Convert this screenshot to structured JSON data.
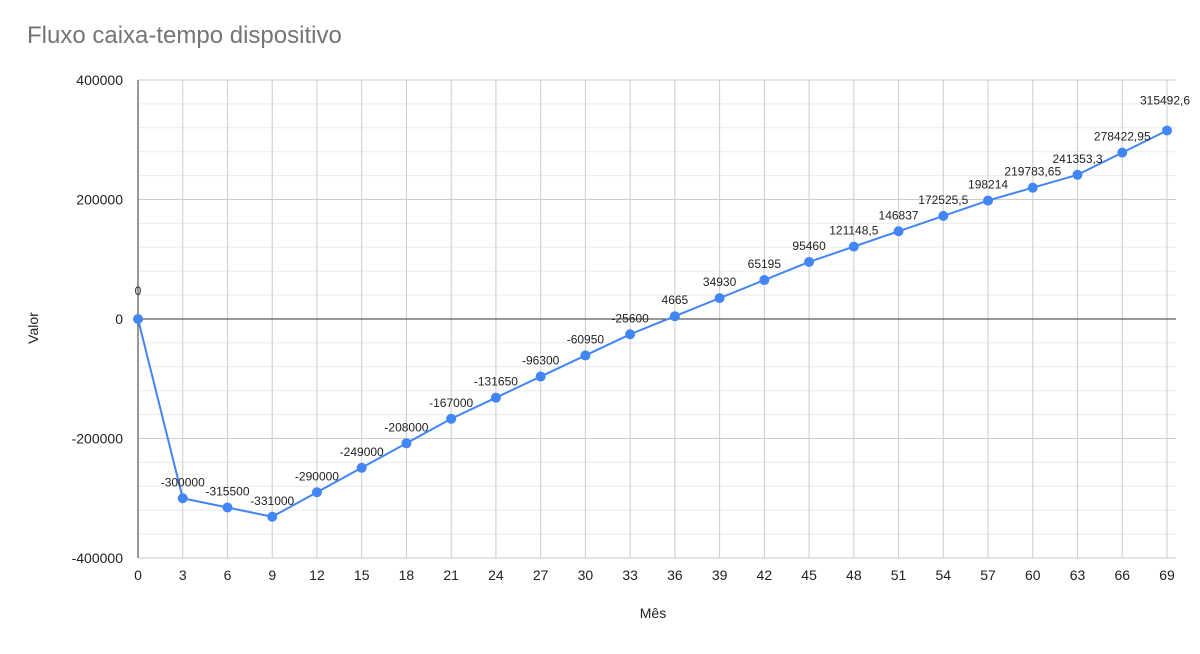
{
  "chart_data": {
    "type": "line",
    "title": "Fluxo caixa-tempo dispositivo",
    "xlabel": "Mês",
    "ylabel": "Valor",
    "x": [
      0,
      3,
      6,
      9,
      12,
      15,
      18,
      21,
      24,
      27,
      30,
      33,
      36,
      39,
      42,
      45,
      48,
      51,
      54,
      57,
      60,
      63,
      66,
      69
    ],
    "series": [
      {
        "values": [
          0,
          -300000,
          -315500,
          -331000,
          -290000,
          -249000,
          -208000,
          -167000,
          -131650,
          -96300,
          -60950,
          -25600,
          4665,
          34930,
          65195,
          95460,
          121148.5,
          146837,
          172525.5,
          198214,
          219783.65,
          241353.3,
          278422.95,
          315492.6
        ],
        "labels": [
          "0",
          "-300000",
          "-315500",
          "-331000",
          "-290000",
          "-249000",
          "-208000",
          "-167000",
          "-131650",
          "-96300",
          "-60950",
          "-25600",
          "4665",
          "34930",
          "65195",
          "95460",
          "121148,5",
          "146837",
          "172525,5",
          "198214",
          "219783,65",
          "241353,3",
          "278422,95",
          "315492,6"
        ]
      }
    ],
    "xlim": [
      0,
      69
    ],
    "ylim": [
      -400000,
      400000
    ],
    "yticks": [
      400000,
      200000,
      0,
      -200000,
      -400000
    ],
    "ytick_labels": [
      "400000",
      "200000",
      "0",
      "-200000",
      "-400000"
    ],
    "xtick_labels": [
      "0",
      "3",
      "6",
      "9",
      "12",
      "15",
      "18",
      "21",
      "24",
      "27",
      "30",
      "33",
      "36",
      "39",
      "42",
      "45",
      "48",
      "51",
      "54",
      "57",
      "60",
      "63",
      "66",
      "69"
    ],
    "grid": true,
    "legend": "none",
    "colors": {
      "line": "#4285f4",
      "grid_major": "#cccccc",
      "grid_minor": "#ebebeb",
      "axis": "#333333",
      "title": "#757575",
      "text": "#222222"
    }
  }
}
